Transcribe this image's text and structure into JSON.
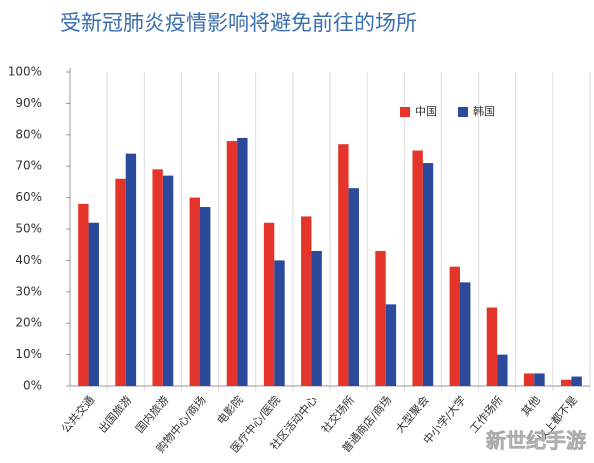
{
  "chart_data": {
    "type": "bar",
    "title": "受新冠肺炎疫情影响将避免前往的场所",
    "categories": [
      "公共交通",
      "出国旅游",
      "国内旅游",
      "购物中心/商场",
      "电影院",
      "医疗中心/医院",
      "社区活动中心",
      "社交场所",
      "普通商店/商场",
      "大型聚会",
      "中小学/大学",
      "工作场所",
      "其他",
      "以上都不是"
    ],
    "series": [
      {
        "name": "中国",
        "color": "#e5352b",
        "values": [
          58,
          66,
          69,
          60,
          78,
          52,
          54,
          77,
          43,
          75,
          38,
          25,
          4,
          2
        ]
      },
      {
        "name": "韩国",
        "color": "#2c4a9c",
        "values": [
          52,
          74,
          67,
          57,
          79,
          40,
          43,
          63,
          26,
          71,
          33,
          10,
          4,
          3
        ]
      }
    ],
    "ylim": [
      0,
      100
    ],
    "yticks": [
      {
        "value": 0,
        "label": "0%"
      },
      {
        "value": 10,
        "label": "10%"
      },
      {
        "value": 20,
        "label": "20%"
      },
      {
        "value": 30,
        "label": "30%"
      },
      {
        "value": 40,
        "label": "40%"
      },
      {
        "value": 50,
        "label": "50%"
      },
      {
        "value": 60,
        "label": "60%"
      },
      {
        "value": 70,
        "label": "70%"
      },
      {
        "value": 80,
        "label": "80%"
      },
      {
        "value": 90,
        "label": "90%"
      },
      {
        "value": 100,
        "label": "100%"
      }
    ],
    "legend_position": "upper right",
    "watermark": "新世纪手游"
  }
}
